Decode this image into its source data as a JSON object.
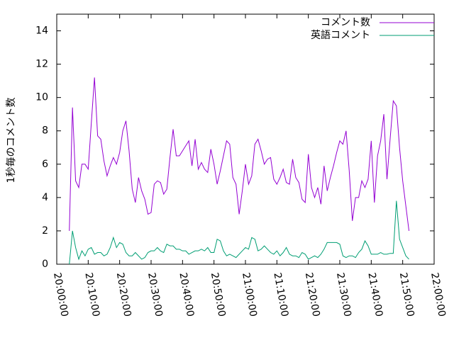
{
  "chart_data": {
    "type": "line",
    "y_label": "1秒毎のコメント数",
    "xlim": [
      "20:00:00",
      "22:00:00"
    ],
    "xticks": [
      "20:00:00",
      "20:10:00",
      "20:20:00",
      "20:30:00",
      "20:40:00",
      "20:50:00",
      "21:00:00",
      "21:10:00",
      "21:20:00",
      "21:30:00",
      "21:40:00",
      "21:50:00",
      "22:00:00"
    ],
    "ylim": [
      0,
      15
    ],
    "yticks": [
      0,
      2,
      4,
      6,
      8,
      10,
      12,
      14
    ],
    "legend": "top-right",
    "x": [
      "20:04:00",
      "20:05:00",
      "20:06:00",
      "20:07:00",
      "20:08:00",
      "20:09:00",
      "20:10:00",
      "20:11:00",
      "20:12:00",
      "20:13:00",
      "20:14:00",
      "20:15:00",
      "20:16:00",
      "20:17:00",
      "20:18:00",
      "20:19:00",
      "20:20:00",
      "20:21:00",
      "20:22:00",
      "20:23:00",
      "20:24:00",
      "20:25:00",
      "20:26:00",
      "20:27:00",
      "20:28:00",
      "20:29:00",
      "20:30:00",
      "20:31:00",
      "20:32:00",
      "20:33:00",
      "20:34:00",
      "20:35:00",
      "20:36:00",
      "20:37:00",
      "20:38:00",
      "20:39:00",
      "20:40:00",
      "20:41:00",
      "20:42:00",
      "20:43:00",
      "20:44:00",
      "20:45:00",
      "20:46:00",
      "20:47:00",
      "20:48:00",
      "20:49:00",
      "20:50:00",
      "20:51:00",
      "20:52:00",
      "20:53:00",
      "20:54:00",
      "20:55:00",
      "20:56:00",
      "20:57:00",
      "20:58:00",
      "20:59:00",
      "21:00:00",
      "21:01:00",
      "21:02:00",
      "21:03:00",
      "21:04:00",
      "21:05:00",
      "21:06:00",
      "21:07:00",
      "21:08:00",
      "21:09:00",
      "21:10:00",
      "21:11:00",
      "21:12:00",
      "21:13:00",
      "21:14:00",
      "21:15:00",
      "21:16:00",
      "21:17:00",
      "21:18:00",
      "21:19:00",
      "21:20:00",
      "21:21:00",
      "21:22:00",
      "21:23:00",
      "21:24:00",
      "21:25:00",
      "21:26:00",
      "21:27:00",
      "21:28:00",
      "21:29:00",
      "21:30:00",
      "21:31:00",
      "21:32:00",
      "21:33:00",
      "21:34:00",
      "21:35:00",
      "21:36:00",
      "21:37:00",
      "21:38:00",
      "21:39:00",
      "21:40:00",
      "21:41:00",
      "21:42:00",
      "21:43:00",
      "21:44:00",
      "21:45:00",
      "21:46:00",
      "21:47:00",
      "21:48:00",
      "21:49:00",
      "21:50:00",
      "21:51:00",
      "21:52:00"
    ],
    "series": [
      {
        "name": "コメント数",
        "color": "#9400d3",
        "values": [
          2,
          9.4,
          5,
          4.6,
          6,
          6,
          5.7,
          8.5,
          11.2,
          7.7,
          7.5,
          6.2,
          5.3,
          5.9,
          6.4,
          6,
          6.7,
          8,
          8.6,
          6.8,
          4.5,
          3.7,
          5.2,
          4.4,
          3.9,
          3,
          3.1,
          4.8,
          5,
          4.9,
          4.2,
          4.5,
          6.4,
          8.1,
          6.5,
          6.5,
          6.8,
          7.1,
          7.4,
          5.9,
          7.5,
          5.7,
          6.1,
          5.7,
          5.5,
          6.9,
          6,
          4.8,
          5.6,
          6.5,
          7.4,
          7.2,
          5.2,
          4.8,
          3,
          4.4,
          6,
          4.8,
          5.3,
          7.2,
          7.5,
          6.8,
          6,
          6.3,
          6.4,
          5.1,
          4.8,
          5.2,
          5.7,
          4.9,
          4.8,
          6.3,
          5.2,
          4.9,
          3.9,
          3.7,
          6.6,
          4.6,
          4,
          4.6,
          3.6,
          5.9,
          4.4,
          5.2,
          5.9,
          6.7,
          7.4,
          7.2,
          8,
          5.6,
          2.6,
          4,
          4,
          5,
          4.6,
          5.1,
          7.4,
          3.7,
          6.5,
          7.4,
          9,
          5.1,
          7.5,
          9.8,
          9.5,
          7,
          5,
          3.5,
          2
        ]
      },
      {
        "name": "英語コメント",
        "color": "#009e73",
        "values": [
          0,
          2,
          1,
          0.3,
          0.8,
          0.5,
          0.9,
          1,
          0.6,
          0.7,
          0.7,
          0.5,
          0.6,
          1,
          1.6,
          1,
          1.3,
          1.2,
          0.7,
          0.5,
          0.5,
          0.7,
          0.5,
          0.3,
          0.4,
          0.7,
          0.8,
          0.8,
          1,
          0.8,
          0.7,
          1.2,
          1.1,
          1.1,
          0.9,
          0.9,
          0.8,
          0.8,
          0.6,
          0.7,
          0.8,
          0.8,
          0.9,
          0.8,
          1,
          0.7,
          0.7,
          1.5,
          1.4,
          0.8,
          0.5,
          0.6,
          0.5,
          0.4,
          0.6,
          0.8,
          1,
          0.9,
          1.6,
          1.5,
          0.8,
          0.9,
          1.1,
          0.9,
          0.7,
          0.6,
          0.8,
          0.5,
          0.7,
          1,
          0.6,
          0.5,
          0.5,
          0.4,
          0.7,
          0.6,
          0.3,
          0.4,
          0.5,
          0.4,
          0.6,
          0.9,
          1.3,
          1.3,
          1.3,
          1.3,
          1.2,
          0.5,
          0.4,
          0.5,
          0.5,
          0.4,
          0.7,
          0.9,
          1.4,
          1.1,
          0.6,
          0.6,
          0.6,
          0.7,
          0.6,
          0.6,
          0.65,
          0.65,
          3.8,
          1.5,
          1,
          0.5,
          0.3
        ]
      }
    ]
  }
}
